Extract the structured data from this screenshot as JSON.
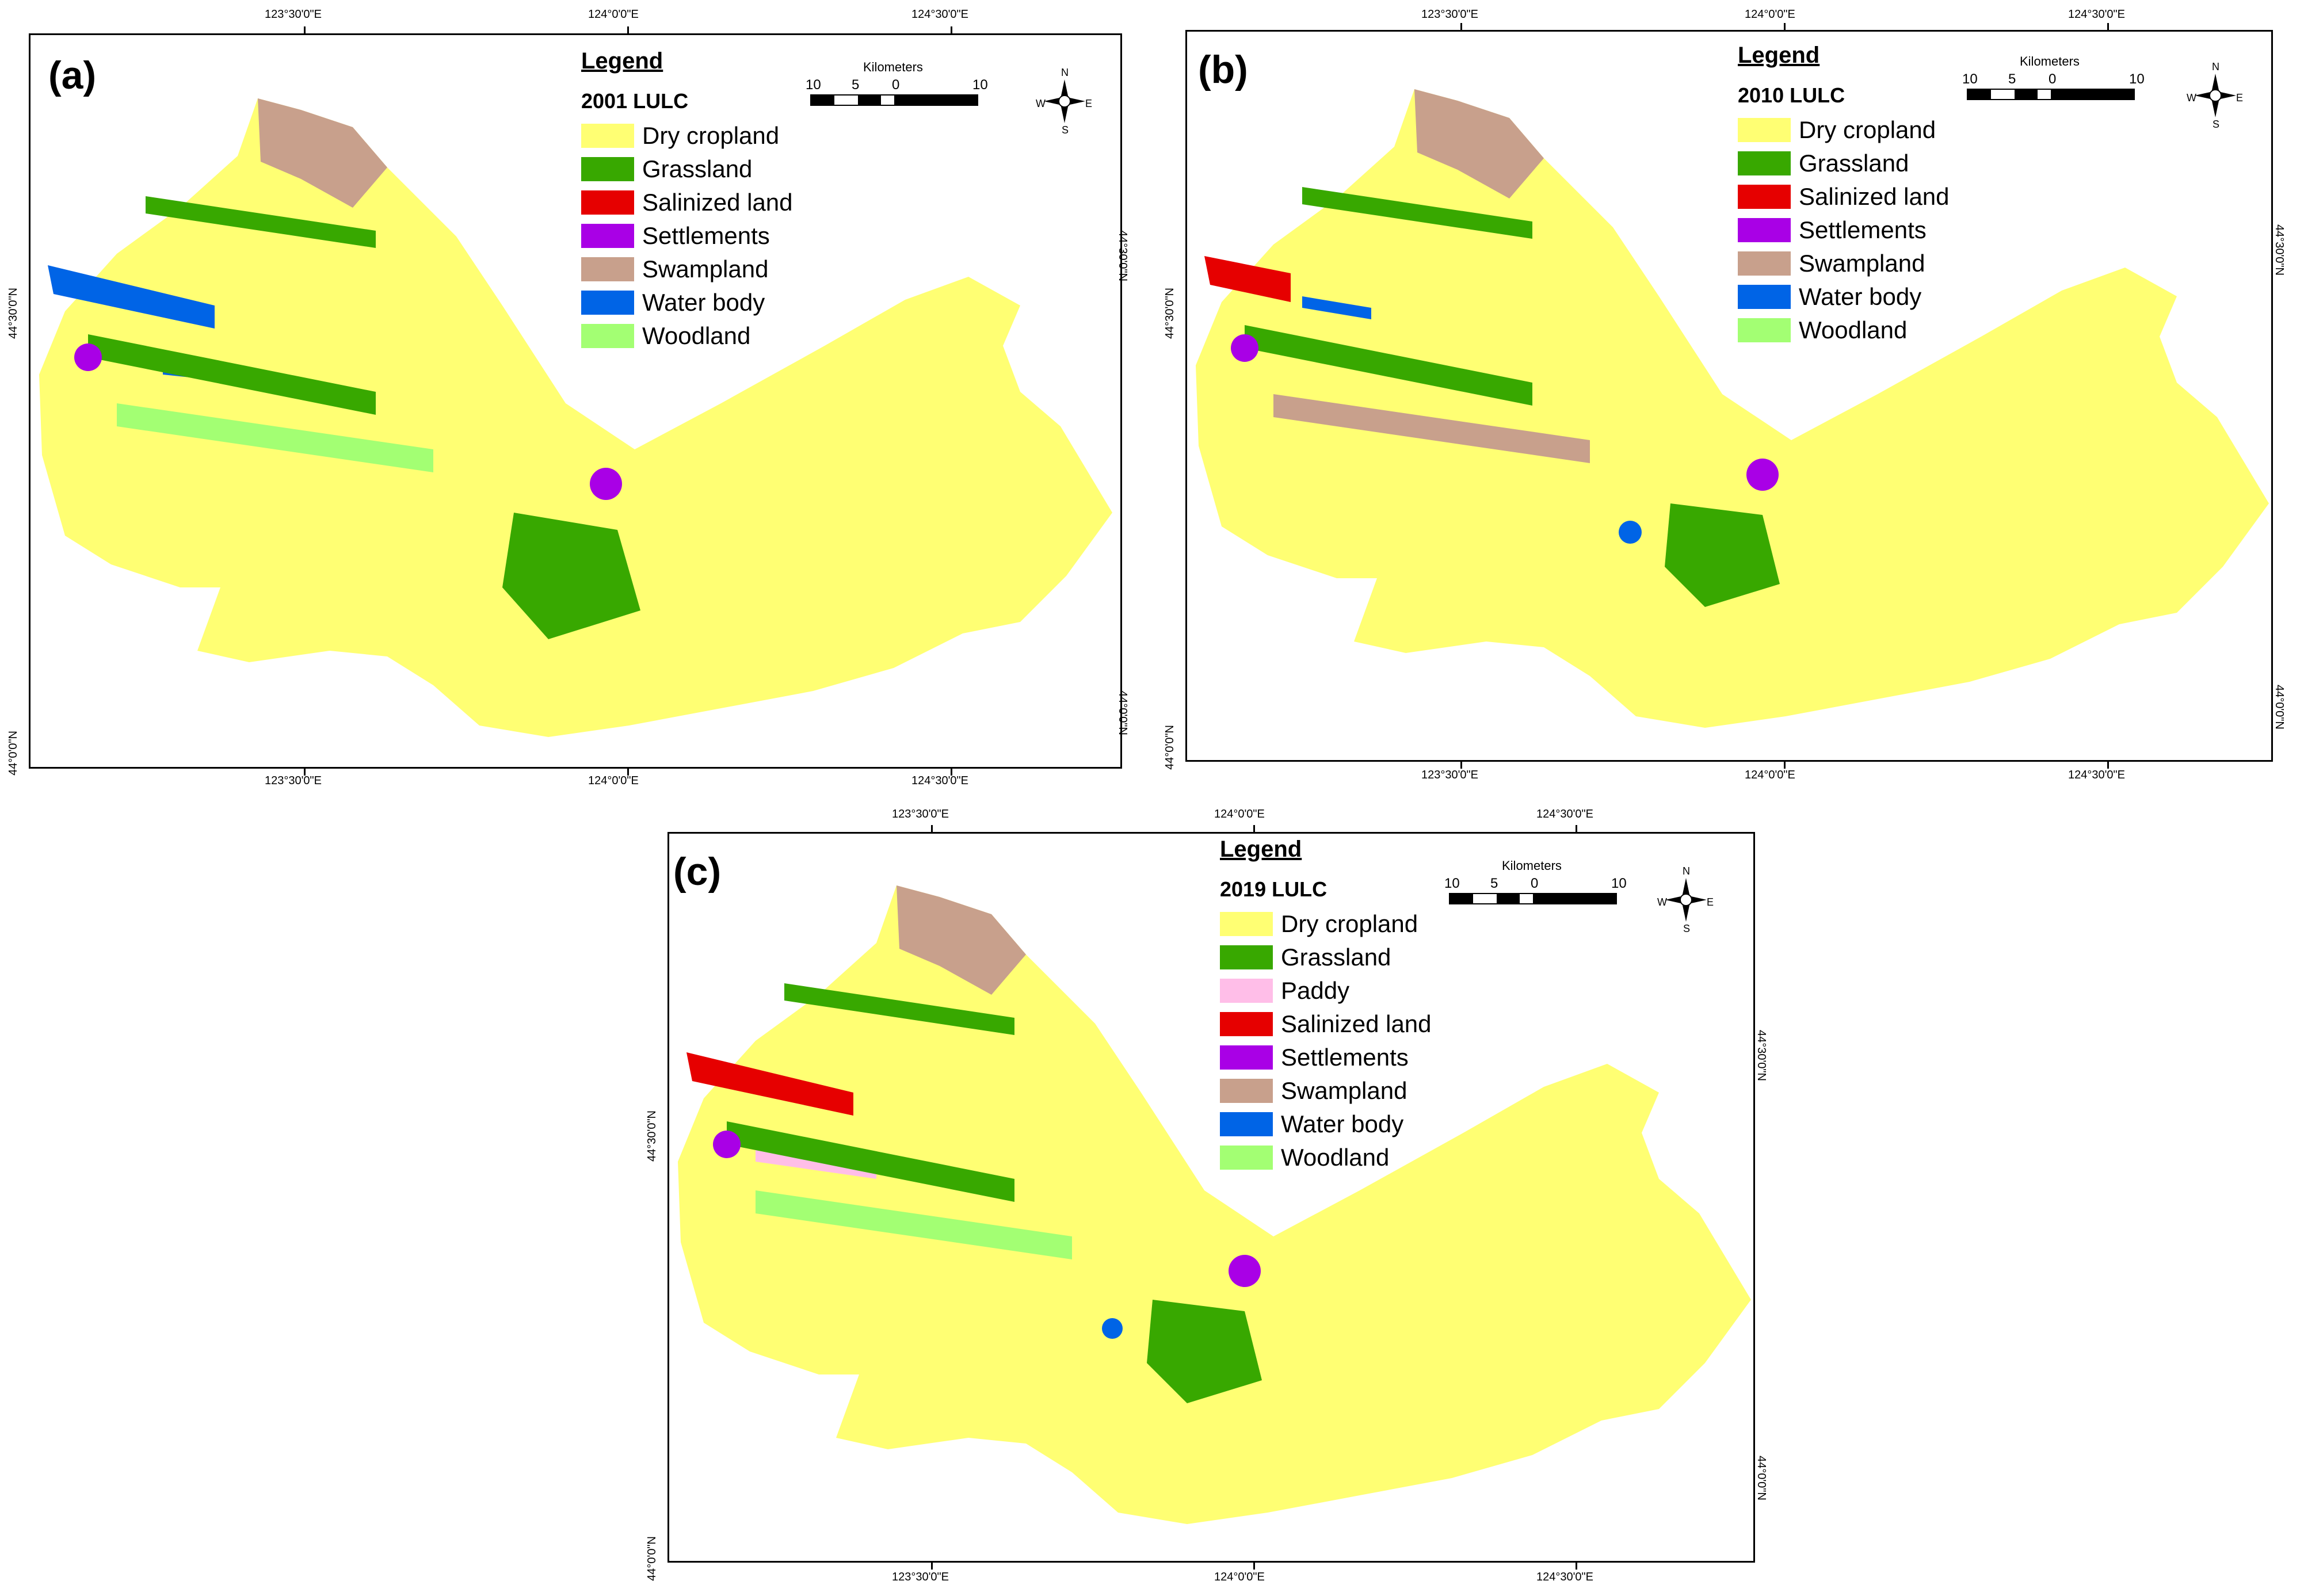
{
  "panels": [
    {
      "label": "(a)",
      "legend_title": "Legend",
      "legend_subtitle": "2001 LULC",
      "legend_items": [
        {
          "label": "Dry cropland",
          "color": "#ffff73"
        },
        {
          "label": "Grassland",
          "color": "#38a800"
        },
        {
          "label": "Salinized land",
          "color": "#e60000"
        },
        {
          "label": "Settlements",
          "color": "#a900e6"
        },
        {
          "label": "Swampland",
          "color": "#c8a08c"
        },
        {
          "label": "Water body",
          "color": "#0064e6"
        },
        {
          "label": "Woodland",
          "color": "#a3ff73"
        }
      ],
      "top_coords": [
        "123°30'0\"E",
        "124°0'0\"E",
        "124°30'0\"E"
      ],
      "bottom_coords": [
        "123°30'0\"E",
        "124°0'0\"E",
        "124°30'0\"E"
      ],
      "left_coords": [
        "44°30'0\"N",
        "44°0'0\"N"
      ],
      "right_coords": [
        "44°30'0\"N",
        "44°0'0\"N"
      ]
    },
    {
      "label": "(b)",
      "legend_title": "Legend",
      "legend_subtitle": "2010 LULC",
      "legend_items": [
        {
          "label": "Dry cropland",
          "color": "#ffff73"
        },
        {
          "label": "Grassland",
          "color": "#38a800"
        },
        {
          "label": "Salinized land",
          "color": "#e60000"
        },
        {
          "label": "Settlements",
          "color": "#a900e6"
        },
        {
          "label": "Swampland",
          "color": "#c8a08c"
        },
        {
          "label": "Water body",
          "color": "#0064e6"
        },
        {
          "label": "Woodland",
          "color": "#a3ff73"
        }
      ],
      "top_coords": [
        "123°30'0\"E",
        "124°0'0\"E",
        "124°30'0\"E"
      ],
      "bottom_coords": [
        "123°30'0\"E",
        "124°0'0\"E",
        "124°30'0\"E"
      ],
      "left_coords": [
        "44°30'0\"N",
        "44°0'0\"N"
      ],
      "right_coords": [
        "44°30'0\"N",
        "44°0'0\"N"
      ]
    },
    {
      "label": "(c)",
      "legend_title": "Legend",
      "legend_subtitle": "2019 LULC",
      "legend_items": [
        {
          "label": "Dry cropland",
          "color": "#ffff73"
        },
        {
          "label": "Grassland",
          "color": "#38a800"
        },
        {
          "label": "Paddy",
          "color": "#ffbee8"
        },
        {
          "label": "Salinized land",
          "color": "#e60000"
        },
        {
          "label": "Settlements",
          "color": "#a900e6"
        },
        {
          "label": "Swampland",
          "color": "#c8a08c"
        },
        {
          "label": "Water body",
          "color": "#0064e6"
        },
        {
          "label": "Woodland",
          "color": "#a3ff73"
        }
      ],
      "top_coords": [
        "123°30'0\"E",
        "124°0'0\"E",
        "124°30'0\"E"
      ],
      "bottom_coords": [
        "123°30'0\"E",
        "124°0'0\"E",
        "124°30'0\"E"
      ],
      "left_coords": [
        "44°30'0\"N",
        "44°0'0\"N"
      ],
      "right_coords": [
        "44°30'0\"N",
        "44°0'0\"N"
      ]
    }
  ],
  "scalebar": {
    "unit": "Kilometers",
    "labels": [
      "10",
      "5",
      "0",
      "10"
    ]
  },
  "compass": {
    "n": "N",
    "s": "S",
    "e": "E",
    "w": "W"
  }
}
